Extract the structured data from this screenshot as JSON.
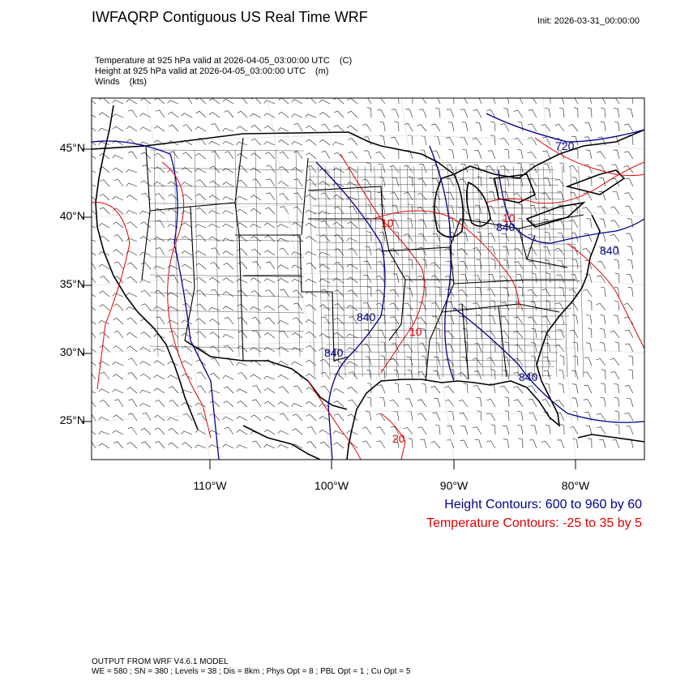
{
  "title": "IWFAQRP Contiguous US Real Time WRF",
  "init": "Init: 2026-03-31_00:00:00",
  "fields": [
    {
      "label": "Temperature at 925 hPa valid at 2026-04-05_03:00:00 UTC",
      "unit": "(C)"
    },
    {
      "label": "Height at 925 hPa valid at 2026-04-05_03:00:00 UTC",
      "unit": "(m)"
    },
    {
      "label": "Winds",
      "unit": "(kts)"
    }
  ],
  "latitude_labels": [
    "45°N",
    "40°N",
    "35°N",
    "30°N",
    "25°N"
  ],
  "longitude_labels": [
    "110°W",
    "100°W",
    "90°W",
    "80°W"
  ],
  "contour_labels": {
    "height": [
      "720",
      "840",
      "840",
      "840",
      "840",
      "840"
    ],
    "temperature": [
      "10",
      "10",
      "20",
      "10"
    ]
  },
  "legend": {
    "height": "Height Contours: 600 to 960 by 60",
    "temperature": "Temperature Contours: -25 to 35 by 5"
  },
  "footer": {
    "line1": "OUTPUT FROM WRF V4.6.1 MODEL",
    "line2": "WE = 580 ; SN = 380 ; Levels = 38 ; Dis = 8km ; Phys Opt = 8 ; PBL Opt = 1 ; Cu Opt = 5"
  },
  "colors": {
    "height_contour": "#00008b",
    "temperature_contour": "#e00000",
    "boundaries": "#000000"
  }
}
